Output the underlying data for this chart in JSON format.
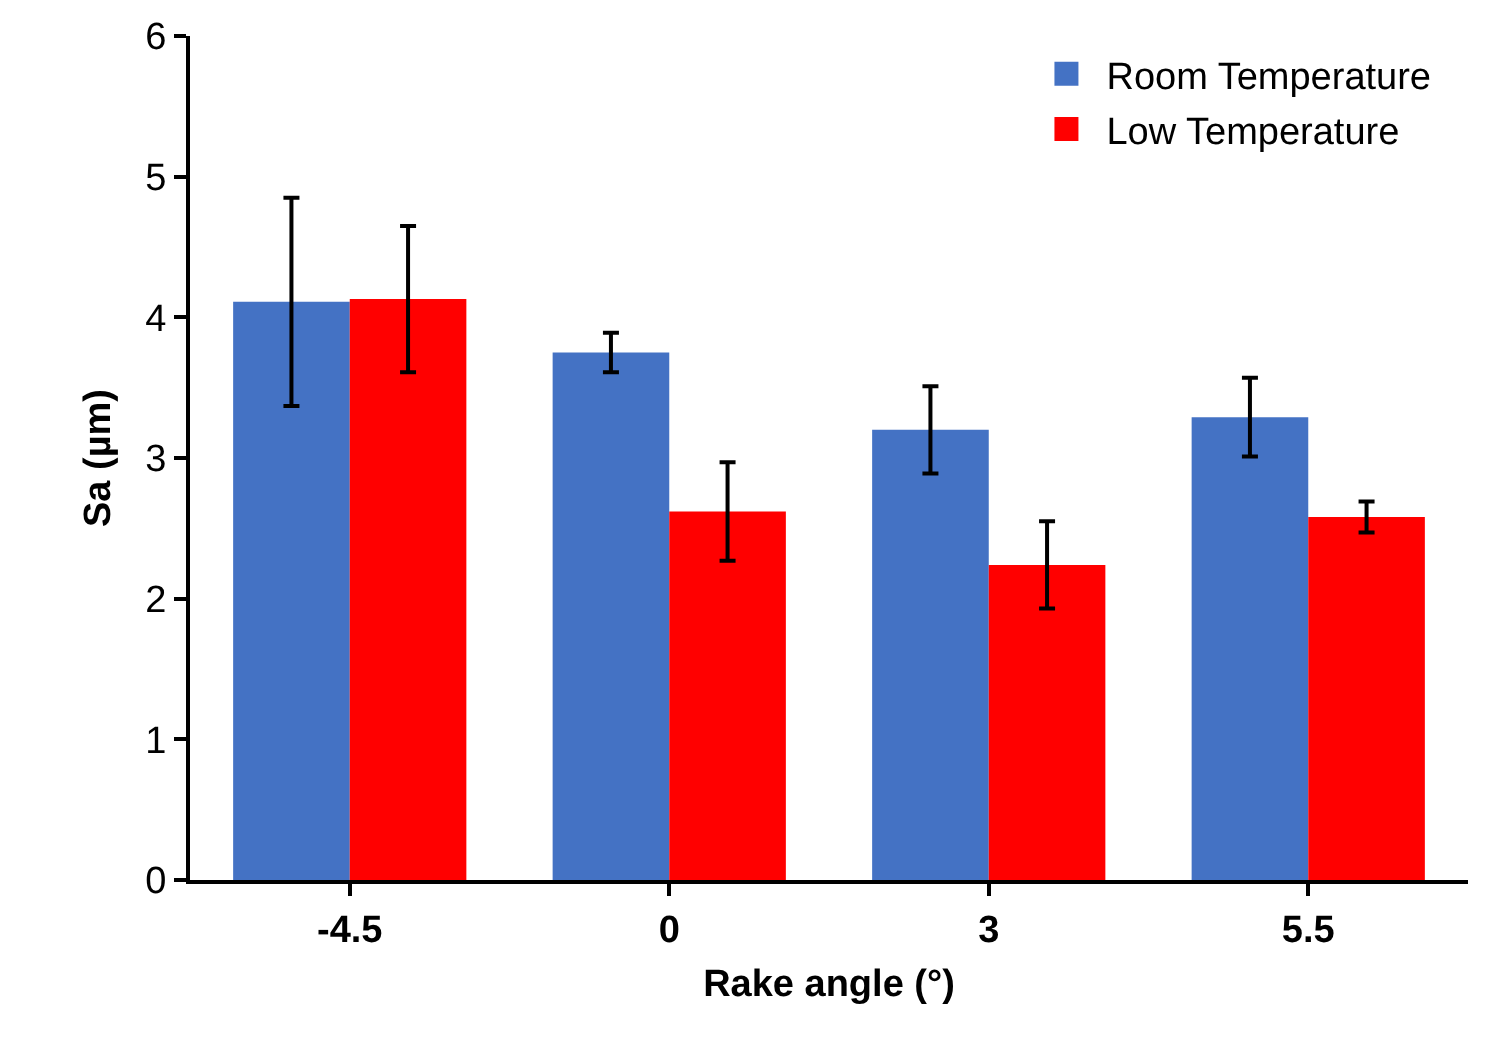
{
  "chart_data": {
    "type": "bar",
    "xlabel": "Rake angle (°)",
    "ylabel": "Sa (µm)",
    "categories": [
      "-4.5",
      "0",
      "3",
      "5.5"
    ],
    "series": [
      {
        "name": "Room Temperature",
        "color": "#4472c4",
        "values": [
          4.11,
          3.75,
          3.2,
          3.29
        ],
        "errors": [
          0.74,
          0.14,
          0.31,
          0.28
        ]
      },
      {
        "name": "Low Temperature",
        "color": "#ff0000",
        "values": [
          4.13,
          2.62,
          2.24,
          2.58
        ],
        "errors": [
          0.52,
          0.35,
          0.31,
          0.11
        ]
      }
    ],
    "ylim": [
      0,
      6
    ],
    "yticks": [
      0,
      1,
      2,
      3,
      4,
      5,
      6
    ],
    "grid": false,
    "legend": "top right"
  }
}
